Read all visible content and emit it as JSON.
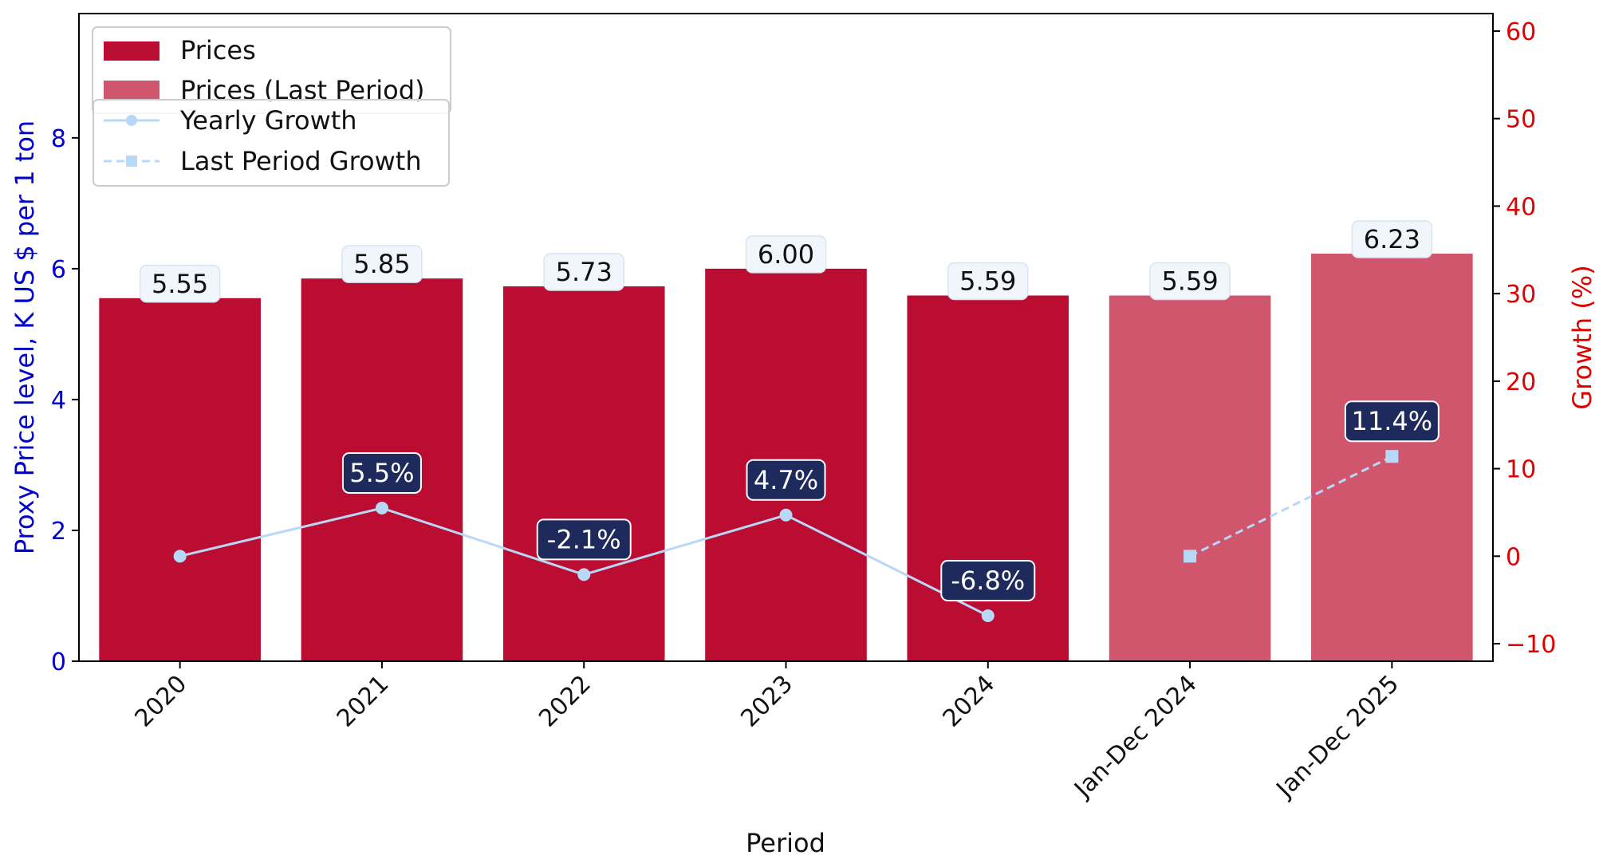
{
  "chart_data": {
    "type": "bar",
    "xlabel": "Period",
    "ylabel_left": "Proxy Price level, K US $ per 1 ton",
    "ylabel_right": "Growth (%)",
    "categories": [
      "2020",
      "2021",
      "2022",
      "2023",
      "2024",
      "Jan-Dec 2024",
      "Jan-Dec 2025"
    ],
    "ylim_left": [
      0,
      9.9
    ],
    "yticks_left": [
      0,
      2,
      4,
      6,
      8
    ],
    "ylim_right": [
      -12,
      62
    ],
    "yticks_right": [
      -10,
      0,
      10,
      20,
      30,
      40,
      50,
      60
    ],
    "series": [
      {
        "name": "Prices",
        "kind": "bar",
        "color": "#bb0d31",
        "values": [
          5.55,
          5.85,
          5.73,
          6.0,
          5.59,
          null,
          null
        ],
        "labels": [
          "5.55",
          "5.85",
          "5.73",
          "6.00",
          "5.59",
          null,
          null
        ]
      },
      {
        "name": "Prices (Last Period)",
        "kind": "bar",
        "color": "#d0566e",
        "values": [
          null,
          null,
          null,
          null,
          null,
          5.59,
          6.23
        ],
        "labels": [
          null,
          null,
          null,
          null,
          null,
          "5.59",
          "6.23"
        ]
      },
      {
        "name": "Yearly Growth",
        "kind": "line",
        "axis": "right",
        "color": "#b8d8f8",
        "marker": "circle",
        "values": [
          0,
          5.5,
          -2.1,
          4.7,
          -6.8,
          null,
          null
        ],
        "labels": [
          null,
          "5.5%",
          "-2.1%",
          "4.7%",
          "-6.8%",
          null,
          null
        ]
      },
      {
        "name": "Last Period Growth",
        "kind": "line",
        "axis": "right",
        "style": "dashed",
        "color": "#b8d8f8",
        "marker": "square",
        "values": [
          null,
          null,
          null,
          null,
          null,
          0,
          11.4
        ],
        "labels": [
          null,
          null,
          null,
          null,
          null,
          null,
          "11.4%"
        ]
      }
    ],
    "label_box_color": "#f0f6fc",
    "growth_box_color": "#1f2a5c",
    "left_axis_color": "#0000cc",
    "right_axis_color": "#e00000",
    "legend_placement": "top-left",
    "grid": false
  }
}
